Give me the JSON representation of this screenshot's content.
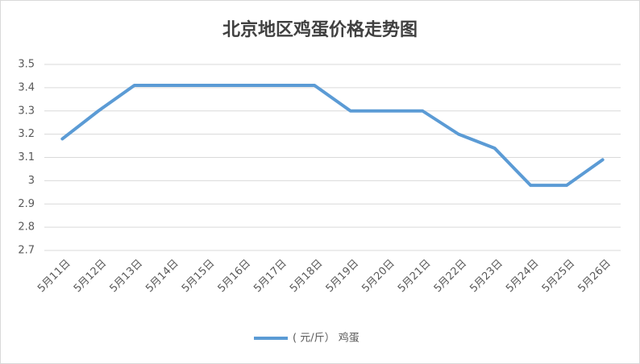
{
  "chart_data": {
    "type": "line",
    "title": "北京地区鸡蛋价格走势图",
    "categories": [
      "5月11日",
      "5月12日",
      "5月13日",
      "5月14日",
      "5月15日",
      "5月16日",
      "5月17日",
      "5月18日",
      "5月19日",
      "5月20日",
      "5月21日",
      "5月22日",
      "5月23日",
      "5月24日",
      "5月25日",
      "5月26日"
    ],
    "series": [
      {
        "name": "( 元/斤） 鸡蛋",
        "color": "#5b9bd5",
        "values": [
          3.18,
          3.3,
          3.41,
          3.41,
          3.41,
          3.41,
          3.41,
          3.41,
          3.3,
          3.3,
          3.3,
          3.2,
          3.14,
          2.98,
          2.98,
          3.09
        ]
      }
    ],
    "ylim": [
      2.7,
      3.5
    ],
    "yticks": [
      2.7,
      2.8,
      2.9,
      3,
      3.1,
      3.2,
      3.3,
      3.4,
      3.5
    ],
    "grid": true,
    "legend": "bottom"
  }
}
